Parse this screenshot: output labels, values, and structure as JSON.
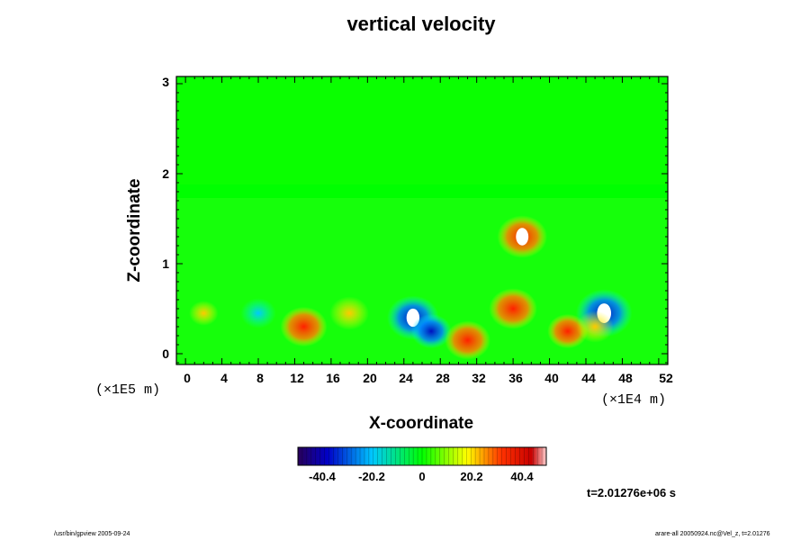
{
  "chart_data": {
    "type": "heatmap",
    "title": "vertical velocity",
    "xlabel": "X-coordinate",
    "ylabel": "Z-coordinate",
    "x_ticks": [
      "0",
      "4",
      "8",
      "12",
      "16",
      "20",
      "24",
      "28",
      "32",
      "36",
      "40",
      "44",
      "48",
      "52"
    ],
    "y_ticks": [
      "0",
      "1",
      "2",
      "3"
    ],
    "xlim": [
      -1,
      53
    ],
    "ylim": [
      -0.12,
      3.08
    ],
    "x_scale_label": "(×1E4 m)",
    "y_scale_label": "(×1E5 m)",
    "colorbar": {
      "ticks": [
        "-40.4",
        "-20.2",
        "0",
        "20.2",
        "40.4"
      ],
      "range": [
        -55,
        55
      ],
      "colors": [
        "#28005a",
        "#0000c8",
        "#00c8ff",
        "#00ff00",
        "#ffff00",
        "#ff3200",
        "#c80000",
        "#ffffff"
      ]
    },
    "features": [
      {
        "x": 2,
        "z": 0.45,
        "value": 12
      },
      {
        "x": 8,
        "z": 0.45,
        "value": -22
      },
      {
        "x": 13,
        "z": 0.3,
        "value": 40
      },
      {
        "x": 18,
        "z": 0.45,
        "value": 28
      },
      {
        "x": 25,
        "z": 0.4,
        "value": -48
      },
      {
        "x": 27,
        "z": 0.25,
        "value": -30
      },
      {
        "x": 31,
        "z": 0.15,
        "value": 38
      },
      {
        "x": 36,
        "z": 0.5,
        "value": 42
      },
      {
        "x": 37,
        "z": 1.3,
        "value": 45
      },
      {
        "x": 42,
        "z": 0.25,
        "value": 30
      },
      {
        "x": 46,
        "z": 0.45,
        "value": -55
      },
      {
        "x": 45,
        "z": 0.3,
        "value": 25
      }
    ],
    "grid": false,
    "legend": "bottom-center colorbar"
  },
  "timestamp": "t=2.01276e+06 s",
  "footer": {
    "left": "/usr/bin/gpview 2005-09-24",
    "right": "arare-all 20050924.nc@Vel_z, t=2.01276"
  }
}
